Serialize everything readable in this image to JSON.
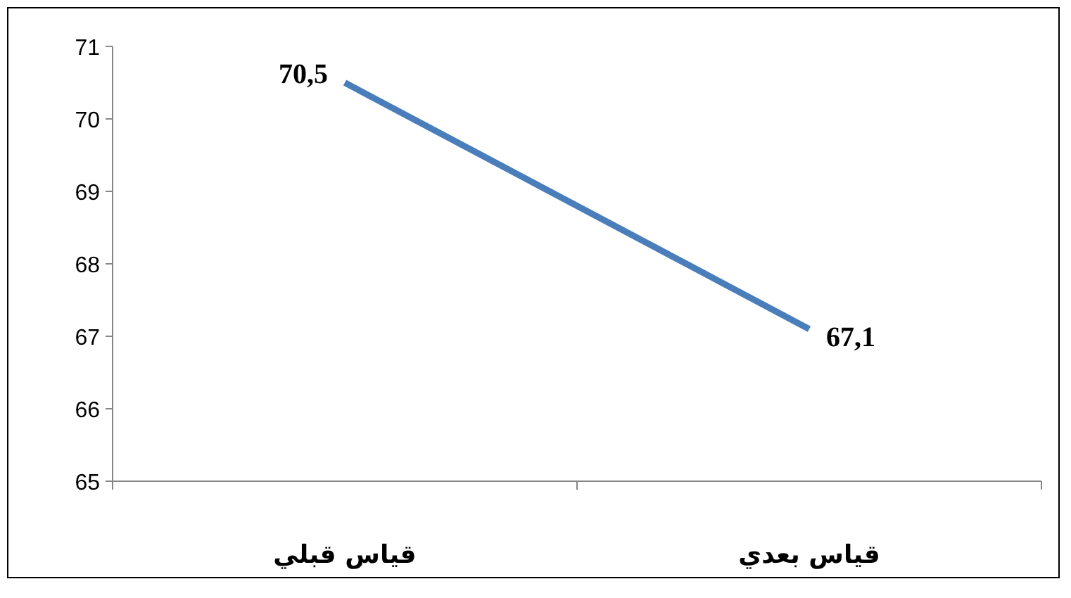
{
  "chart_data": {
    "type": "line",
    "categories": [
      "قياس قبلي",
      "قياس بعدي"
    ],
    "series": [
      {
        "color": "#4a7ebb",
        "values": [
          70.5,
          67.1
        ],
        "value_labels": [
          "70,5",
          "67,1"
        ]
      }
    ],
    "ylim": [
      65,
      71
    ],
    "yticks": [
      65,
      66,
      67,
      68,
      69,
      70,
      71
    ],
    "grid": false,
    "marker": "none",
    "line_style": "solid"
  }
}
